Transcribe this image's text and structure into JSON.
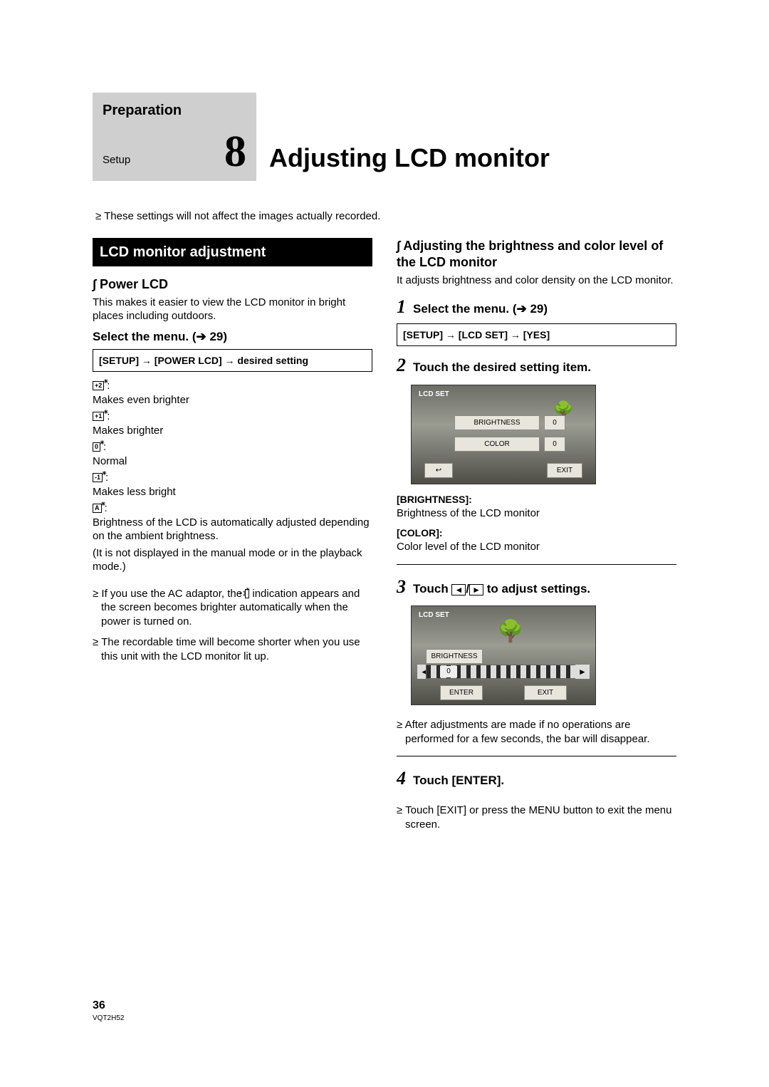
{
  "header": {
    "preparation": "Preparation",
    "setup": "Setup",
    "number": "8",
    "title": "Adjusting LCD monitor"
  },
  "intro_bullet": "These settings will not affect the images actually recorded.",
  "left": {
    "section_bar": "LCD monitor adjustment",
    "power_lcd": "Power LCD",
    "power_lcd_desc": "This makes it easier to view the LCD monitor in bright places including outdoors.",
    "select_menu": "Select the menu.",
    "menu_box": "[SETUP] → [POWER LCD] → desired setting",
    "settings": [
      {
        "icon": "+2",
        "desc": "Makes even brighter"
      },
      {
        "icon": "+1",
        "desc": "Makes brighter"
      },
      {
        "icon": "0",
        "desc": "Normal"
      },
      {
        "icon": "-1",
        "desc": "Makes less bright"
      },
      {
        "icon": "A",
        "desc": "Brightness of the LCD is automatically adjusted depending on the ambient brightness."
      }
    ],
    "auto_note": "(It is not displayed in the manual mode or in the playback mode.)",
    "bullets": [
      "If you use the AC adaptor, the        indication appears and the screen becomes brighter automatically when the power is turned on.",
      "The recordable time will become shorter when you use this unit with the LCD monitor lit up."
    ],
    "inline_icon": "+1"
  },
  "right": {
    "head": "Adjusting the brightness and color level of the LCD monitor",
    "head_desc": "It adjusts brightness and color density on the LCD monitor.",
    "step1": "Select the menu.",
    "menu_box": "[SETUP] → [LCD SET] → [YES]",
    "step2": "Touch the desired setting item.",
    "screen1": {
      "title": "LCD SET",
      "brightness": "BRIGHTNESS",
      "bright_val": "0",
      "color": "COLOR",
      "color_val": "0",
      "back": "↩",
      "exit": "EXIT"
    },
    "brightness_label": "[BRIGHTNESS]:",
    "brightness_desc": "Brightness of the LCD monitor",
    "color_label": "[COLOR]:",
    "color_desc": "Color level of the LCD monitor",
    "step3_pre": "Touch ",
    "step3_post": " to adjust settings.",
    "arrow_left": "◄",
    "arrow_right": "►",
    "screen2": {
      "title": "LCD SET",
      "brightness": "BRIGHTNESS",
      "val": "0",
      "enter": "ENTER",
      "exit": "EXIT"
    },
    "bullet_after": "After adjustments are made if no operations are performed for a few seconds, the bar will disappear.",
    "step4": "Touch [ENTER].",
    "step4_bullet": "Touch [EXIT] or press the MENU button to exit the menu screen."
  },
  "footer": {
    "page": "36",
    "code": "VQT2H52"
  }
}
